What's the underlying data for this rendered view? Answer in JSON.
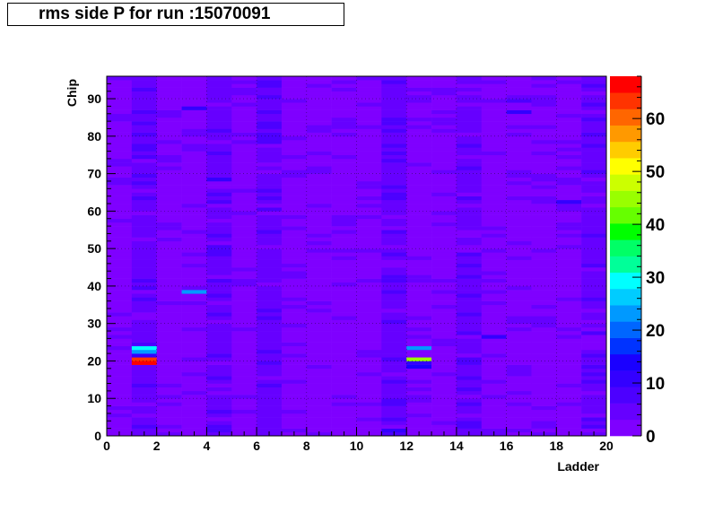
{
  "chart_data": {
    "type": "heatmap",
    "title": "rms side P for run :15070091",
    "xlabel": "Ladder",
    "ylabel": "Chip",
    "xlim": [
      0,
      20
    ],
    "ylim": [
      0,
      96
    ],
    "x_bins": 20,
    "y_bins": 96,
    "x_ticks": [
      0,
      2,
      4,
      6,
      8,
      10,
      12,
      14,
      16,
      18,
      20
    ],
    "y_ticks": [
      0,
      10,
      20,
      30,
      40,
      50,
      60,
      70,
      80,
      90
    ],
    "zlim": [
      0,
      68
    ],
    "z_ticks": [
      0,
      10,
      20,
      30,
      40,
      50,
      60
    ],
    "grid": true,
    "palette": [
      "#7f00ff",
      "#6600ff",
      "#4c00ff",
      "#3300ff",
      "#1a00ff",
      "#0033ff",
      "#0066ff",
      "#0099ff",
      "#00ccff",
      "#00ffff",
      "#00ff99",
      "#00ff66",
      "#00ff00",
      "#66ff00",
      "#99ff00",
      "#ccff00",
      "#ffff00",
      "#ffcc00",
      "#ff9900",
      "#ff6600",
      "#ff3300",
      "#ff0000"
    ],
    "baseline_value": 3,
    "columns_base": [
      3,
      4,
      3,
      3,
      4,
      3,
      4,
      3,
      3,
      3,
      3,
      4,
      3,
      3,
      4,
      3,
      3,
      3,
      3,
      4
    ],
    "hotspots": [
      {
        "ladder": 1,
        "chip": 23,
        "value": 30
      },
      {
        "ladder": 1,
        "chip": 22,
        "value": 22
      },
      {
        "ladder": 1,
        "chip": 20,
        "value": 62
      },
      {
        "ladder": 1,
        "chip": 19,
        "value": 68
      },
      {
        "ladder": 1,
        "chip": 21,
        "value": 10
      },
      {
        "ladder": 3,
        "chip": 38,
        "value": 22
      },
      {
        "ladder": 3,
        "chip": 87,
        "value": 12
      },
      {
        "ladder": 4,
        "chip": 68,
        "value": 12
      },
      {
        "ladder": 12,
        "chip": 23,
        "value": 22
      },
      {
        "ladder": 12,
        "chip": 20,
        "value": 45
      },
      {
        "ladder": 12,
        "chip": 18,
        "value": 14
      },
      {
        "ladder": 12,
        "chip": 19,
        "value": 10
      },
      {
        "ladder": 11,
        "chip": 1,
        "value": 10
      },
      {
        "ladder": 11,
        "chip": 4,
        "value": 8
      },
      {
        "ladder": 16,
        "chip": 86,
        "value": 10
      },
      {
        "ladder": 16,
        "chip": 89,
        "value": 8
      },
      {
        "ladder": 18,
        "chip": 62,
        "value": 10
      },
      {
        "ladder": 15,
        "chip": 26,
        "value": 10
      },
      {
        "ladder": 6,
        "chip": 94,
        "value": 8
      },
      {
        "ladder": 19,
        "chip": 93,
        "value": 8
      }
    ]
  }
}
